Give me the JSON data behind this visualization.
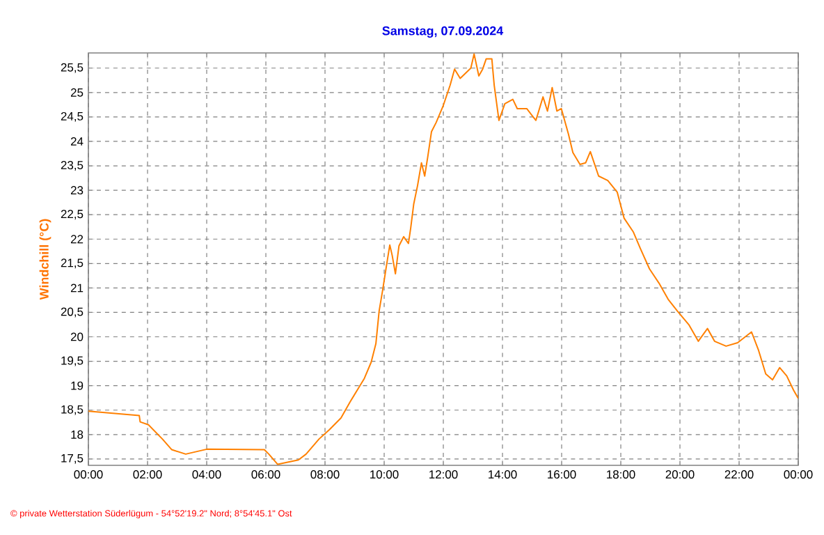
{
  "chart_data": {
    "type": "line",
    "title": "Samstag, 07.09.2024",
    "ylabel": "Windchill  (°C)",
    "annotations": [
      "© private Wetterstation Süderlügum  -  54°52'19.2\" Nord; 8°54'45.1\" Ost"
    ],
    "x": [
      0,
      1.72,
      1.75,
      2.03,
      2.5,
      2.82,
      3.29,
      4.0,
      5.95,
      6.1,
      6.4,
      7.1,
      7.36,
      7.8,
      8.15,
      8.54,
      8.85,
      9.09,
      9.33,
      9.56,
      9.72,
      9.83,
      9.95,
      10.06,
      10.19,
      10.27,
      10.38,
      10.5,
      10.66,
      10.82,
      10.9,
      11.0,
      11.13,
      11.26,
      11.37,
      11.47,
      11.6,
      11.76,
      11.99,
      12.23,
      12.38,
      12.57,
      12.93,
      13.04,
      13.2,
      13.33,
      13.45,
      13.64,
      13.72,
      13.88,
      14.08,
      14.35,
      14.5,
      14.82,
      15.13,
      15.37,
      15.52,
      15.68,
      15.84,
      15.99,
      16.23,
      16.38,
      16.62,
      16.81,
      16.97,
      17.25,
      17.56,
      17.88,
      18.11,
      18.42,
      18.66,
      18.97,
      19.29,
      19.6,
      19.91,
      20.31,
      20.62,
      20.93,
      21.17,
      21.56,
      21.95,
      22.42,
      22.66,
      22.9,
      23.13,
      23.37,
      23.61,
      23.84,
      24.0
    ],
    "series": [
      {
        "color": "#ff8000",
        "values": [
          18.48,
          18.39,
          18.26,
          18.2,
          17.91,
          17.69,
          17.6,
          17.7,
          17.69,
          17.6,
          17.39,
          17.48,
          17.6,
          17.91,
          18.1,
          18.34,
          18.67,
          18.91,
          19.15,
          19.48,
          19.86,
          20.53,
          20.96,
          21.39,
          21.88,
          21.67,
          21.29,
          21.86,
          22.05,
          21.91,
          22.24,
          22.72,
          23.1,
          23.56,
          23.29,
          23.67,
          24.2,
          24.39,
          24.72,
          25.15,
          25.48,
          25.29,
          25.5,
          25.79,
          25.34,
          25.48,
          25.69,
          25.69,
          25.15,
          24.43,
          24.77,
          24.86,
          24.67,
          24.67,
          24.43,
          24.91,
          24.62,
          25.1,
          24.62,
          24.67,
          24.15,
          23.77,
          23.53,
          23.56,
          23.79,
          23.29,
          23.2,
          22.96,
          22.43,
          22.15,
          21.81,
          21.39,
          21.1,
          20.77,
          20.53,
          20.24,
          19.91,
          20.17,
          19.91,
          19.81,
          19.88,
          20.1,
          19.72,
          19.24,
          19.12,
          19.37,
          19.2,
          18.91,
          18.74
        ]
      }
    ],
    "xlim": [
      0,
      24
    ],
    "ylim": [
      17.37,
      25.81
    ],
    "xticks": [
      {
        "value": 0,
        "label": "00:00"
      },
      {
        "value": 2,
        "label": "02:00"
      },
      {
        "value": 4,
        "label": "04:00"
      },
      {
        "value": 6,
        "label": "06:00"
      },
      {
        "value": 8,
        "label": "08:00"
      },
      {
        "value": 10,
        "label": "10:00"
      },
      {
        "value": 12,
        "label": "12:00"
      },
      {
        "value": 14,
        "label": "14:00"
      },
      {
        "value": 16,
        "label": "16:00"
      },
      {
        "value": 18,
        "label": "18:00"
      },
      {
        "value": 20,
        "label": "20:00"
      },
      {
        "value": 22,
        "label": "22:00"
      },
      {
        "value": 24,
        "label": "00:00"
      }
    ],
    "yticks": [
      {
        "value": 17.5,
        "label": "17,5"
      },
      18,
      {
        "value": 18.5,
        "label": "18,5"
      },
      19,
      {
        "value": 19.5,
        "label": "19,5"
      },
      20,
      {
        "value": 20.5,
        "label": "20,5"
      },
      21,
      {
        "value": 21.5,
        "label": "21,5"
      },
      22,
      {
        "value": 22.5,
        "label": "22,5"
      },
      23,
      {
        "value": 23.5,
        "label": "23,5"
      },
      24,
      {
        "value": 24.5,
        "label": "24,5"
      },
      25,
      {
        "value": 25.5,
        "label": "25,5"
      }
    ],
    "grid": true,
    "line_style": "solid"
  }
}
